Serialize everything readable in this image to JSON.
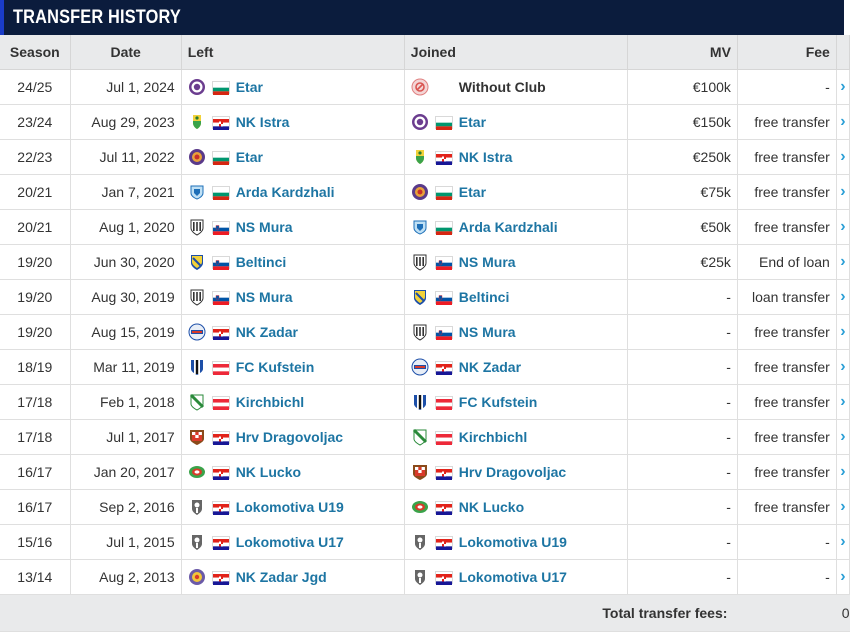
{
  "title": "TRANSFER HISTORY",
  "columns": {
    "season": "Season",
    "date": "Date",
    "left": "Left",
    "joined": "Joined",
    "mv": "MV",
    "fee": "Fee"
  },
  "rows": [
    {
      "season": "24/25",
      "date": "Jul 1, 2024",
      "left": {
        "name": "Etar",
        "crest": "etar",
        "flag": "bg"
      },
      "joined": {
        "name": "Without Club",
        "crest": "without",
        "flag": ""
      },
      "mv": "€100k",
      "fee": "-"
    },
    {
      "season": "23/24",
      "date": "Aug 29, 2023",
      "left": {
        "name": "NK Istra",
        "crest": "istra",
        "flag": "hr"
      },
      "joined": {
        "name": "Etar",
        "crest": "etar",
        "flag": "bg"
      },
      "mv": "€150k",
      "fee": "free transfer"
    },
    {
      "season": "22/23",
      "date": "Jul 11, 2022",
      "left": {
        "name": "Etar",
        "crest": "etar2",
        "flag": "bg"
      },
      "joined": {
        "name": "NK Istra",
        "crest": "istra",
        "flag": "hr"
      },
      "mv": "€250k",
      "fee": "free transfer"
    },
    {
      "season": "20/21",
      "date": "Jan 7, 2021",
      "left": {
        "name": "Arda Kardzhali",
        "crest": "arda",
        "flag": "bg"
      },
      "joined": {
        "name": "Etar",
        "crest": "etar2",
        "flag": "bg"
      },
      "mv": "€75k",
      "fee": "free transfer"
    },
    {
      "season": "20/21",
      "date": "Aug 1, 2020",
      "left": {
        "name": "NS Mura",
        "crest": "mura",
        "flag": "si"
      },
      "joined": {
        "name": "Arda Kardzhali",
        "crest": "arda",
        "flag": "bg"
      },
      "mv": "€50k",
      "fee": "free transfer"
    },
    {
      "season": "19/20",
      "date": "Jun 30, 2020",
      "left": {
        "name": "Beltinci",
        "crest": "beltinci",
        "flag": "si"
      },
      "joined": {
        "name": "NS Mura",
        "crest": "mura",
        "flag": "si"
      },
      "mv": "€25k",
      "fee": "End of loan"
    },
    {
      "season": "19/20",
      "date": "Aug 30, 2019",
      "left": {
        "name": "NS Mura",
        "crest": "mura",
        "flag": "si"
      },
      "joined": {
        "name": "Beltinci",
        "crest": "beltinci",
        "flag": "si"
      },
      "mv": "-",
      "fee": "loan transfer"
    },
    {
      "season": "19/20",
      "date": "Aug 15, 2019",
      "left": {
        "name": "NK Zadar",
        "crest": "zadar",
        "flag": "hr"
      },
      "joined": {
        "name": "NS Mura",
        "crest": "mura",
        "flag": "si"
      },
      "mv": "-",
      "fee": "free transfer"
    },
    {
      "season": "18/19",
      "date": "Mar 11, 2019",
      "left": {
        "name": "FC Kufstein",
        "crest": "kufstein",
        "flag": "at"
      },
      "joined": {
        "name": "NK Zadar",
        "crest": "zadar",
        "flag": "hr"
      },
      "mv": "-",
      "fee": "free transfer"
    },
    {
      "season": "17/18",
      "date": "Feb 1, 2018",
      "left": {
        "name": "Kirchbichl",
        "crest": "kirchbichl",
        "flag": "at"
      },
      "joined": {
        "name": "FC Kufstein",
        "crest": "kufstein",
        "flag": "at"
      },
      "mv": "-",
      "fee": "free transfer"
    },
    {
      "season": "17/18",
      "date": "Jul 1, 2017",
      "left": {
        "name": "Hrv Dragovoljac",
        "crest": "dragovoljac",
        "flag": "hr"
      },
      "joined": {
        "name": "Kirchbichl",
        "crest": "kirchbichl",
        "flag": "at"
      },
      "mv": "-",
      "fee": "free transfer"
    },
    {
      "season": "16/17",
      "date": "Jan 20, 2017",
      "left": {
        "name": "NK Lucko",
        "crest": "lucko",
        "flag": "hr"
      },
      "joined": {
        "name": "Hrv Dragovoljac",
        "crest": "dragovoljac",
        "flag": "hr"
      },
      "mv": "-",
      "fee": "free transfer"
    },
    {
      "season": "16/17",
      "date": "Sep 2, 2016",
      "left": {
        "name": "Lokomotiva U19",
        "crest": "lokomotiva",
        "flag": "hr"
      },
      "joined": {
        "name": "NK Lucko",
        "crest": "lucko",
        "flag": "hr"
      },
      "mv": "-",
      "fee": "free transfer"
    },
    {
      "season": "15/16",
      "date": "Jul 1, 2015",
      "left": {
        "name": "Lokomotiva U17",
        "crest": "lokomotiva",
        "flag": "hr"
      },
      "joined": {
        "name": "Lokomotiva U19",
        "crest": "lokomotiva",
        "flag": "hr"
      },
      "mv": "-",
      "fee": "-"
    },
    {
      "season": "13/14",
      "date": "Aug 2, 2013",
      "left": {
        "name": "NK Zadar Jgd",
        "crest": "zadarjgd",
        "flag": "hr"
      },
      "joined": {
        "name": "Lokomotiva U17",
        "crest": "lokomotiva",
        "flag": "hr"
      },
      "mv": "-",
      "fee": "-"
    }
  ],
  "footer": {
    "label": "Total transfer fees:",
    "value": "0"
  },
  "colors": {
    "title_bg": "#0b1c3d",
    "accent": "#1a3cc8",
    "link": "#1d75a3",
    "arrow": "#2b9fd6",
    "header_bg": "#e9eaeb"
  }
}
